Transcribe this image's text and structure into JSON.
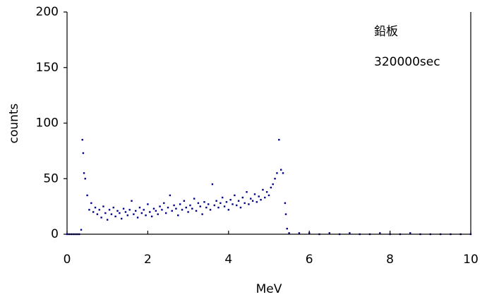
{
  "chart_data": {
    "type": "scatter",
    "annotations": [
      "鉛板",
      "320000sec"
    ],
    "xlabel": "MeV",
    "ylabel": "counts",
    "xlim": [
      0,
      10
    ],
    "xticks": [
      0,
      2,
      4,
      6,
      8,
      10
    ],
    "ylim": [
      0,
      200
    ],
    "yticks": [
      0,
      50,
      100,
      150,
      200
    ],
    "series": [
      {
        "color": "#00008b",
        "x": [
          0,
          0.05,
          0.1,
          0.15,
          0.2,
          0.25,
          0.3,
          0.35,
          0.38,
          0.4,
          0.42,
          0.45,
          0.5,
          0.55,
          0.6,
          0.65,
          0.7,
          0.75,
          0.8,
          0.85,
          0.9,
          0.95,
          1.0,
          1.05,
          1.1,
          1.15,
          1.2,
          1.25,
          1.3,
          1.35,
          1.4,
          1.45,
          1.5,
          1.55,
          1.6,
          1.65,
          1.7,
          1.75,
          1.8,
          1.85,
          1.9,
          1.95,
          2.0,
          2.05,
          2.1,
          2.15,
          2.2,
          2.25,
          2.3,
          2.35,
          2.4,
          2.45,
          2.5,
          2.55,
          2.6,
          2.65,
          2.7,
          2.75,
          2.8,
          2.85,
          2.9,
          2.95,
          3.0,
          3.05,
          3.1,
          3.15,
          3.2,
          3.25,
          3.3,
          3.35,
          3.4,
          3.45,
          3.5,
          3.55,
          3.6,
          3.65,
          3.7,
          3.75,
          3.8,
          3.85,
          3.9,
          3.95,
          4.0,
          4.05,
          4.1,
          4.15,
          4.2,
          4.25,
          4.3,
          4.35,
          4.4,
          4.45,
          4.5,
          4.55,
          4.6,
          4.65,
          4.7,
          4.75,
          4.8,
          4.85,
          4.9,
          4.95,
          5.0,
          5.05,
          5.1,
          5.15,
          5.2,
          5.25,
          5.3,
          5.35,
          5.4,
          5.42,
          5.45,
          5.5,
          5.75,
          6.0,
          6.25,
          6.5,
          6.75,
          7.0,
          7.25,
          7.5,
          7.75,
          8.0,
          8.25,
          8.5,
          8.75,
          9.0,
          9.25,
          9.5,
          9.75,
          10.0
        ],
        "values": [
          0,
          0,
          0,
          0,
          0,
          0,
          0,
          4,
          85,
          73,
          55,
          50,
          35,
          22,
          28,
          20,
          24,
          18,
          22,
          15,
          25,
          19,
          13,
          22,
          18,
          24,
          16,
          21,
          19,
          14,
          23,
          20,
          17,
          22,
          30,
          18,
          21,
          15,
          24,
          19,
          22,
          17,
          27,
          20,
          16,
          23,
          21,
          18,
          25,
          22,
          28,
          19,
          24,
          35,
          21,
          26,
          23,
          17,
          27,
          22,
          30,
          24,
          20,
          26,
          23,
          32,
          21,
          28,
          25,
          18,
          29,
          24,
          27,
          22,
          45,
          26,
          30,
          24,
          28,
          33,
          25,
          29,
          22,
          31,
          27,
          35,
          26,
          30,
          24,
          33,
          28,
          38,
          27,
          32,
          30,
          36,
          29,
          34,
          31,
          40,
          33,
          38,
          35,
          42,
          45,
          50,
          55,
          85,
          58,
          55,
          28,
          18,
          5,
          1,
          1,
          1,
          0,
          1,
          0,
          1,
          0,
          0,
          1,
          0,
          0,
          1,
          0,
          0,
          0,
          0,
          0,
          0
        ]
      }
    ]
  }
}
